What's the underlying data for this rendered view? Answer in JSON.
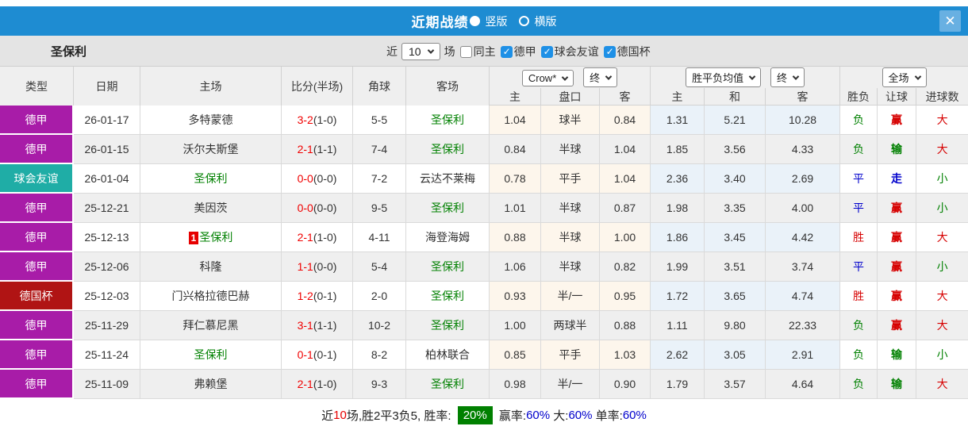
{
  "titlebar": {
    "title": "近期战绩",
    "layout_vertical": "竖版",
    "layout_horizontal": "横版"
  },
  "filter": {
    "team": "圣保利",
    "recent_label": "近",
    "count": "10",
    "matches_label": "场",
    "checkboxes": [
      {
        "label": "同主",
        "checked": false
      },
      {
        "label": "德甲",
        "checked": true
      },
      {
        "label": "球会友谊",
        "checked": true
      },
      {
        "label": "德国杯",
        "checked": true
      }
    ]
  },
  "table": {
    "main_headers": [
      "类型",
      "日期",
      "主场",
      "比分(半场)",
      "角球",
      "客场"
    ],
    "sub_headers": [
      "主",
      "盘口",
      "客",
      "主",
      "和",
      "客",
      "胜负",
      "让球",
      "进球数"
    ],
    "dropdowns": {
      "company": "Crow*",
      "company_period": "终",
      "avg": "胜平负均值",
      "avg_period": "终",
      "scope": "全场"
    }
  },
  "rows": [
    {
      "league": "德甲",
      "league_color": "purple",
      "date": "26-01-17",
      "home": "多特蒙德",
      "home_team": false,
      "badge": "",
      "score": "3-2",
      "half": "(1-0)",
      "corners": "5-5",
      "away": "圣保利",
      "away_team": true,
      "ah_home": "1.04",
      "ah_line": "球半",
      "ah_away": "0.84",
      "eu_home": "1.31",
      "eu_draw": "5.21",
      "eu_away": "10.28",
      "outcome": "负",
      "outcome_color": "green",
      "cover": "赢",
      "cover_color": "red",
      "goals": "大",
      "goals_color": "red"
    },
    {
      "league": "德甲",
      "league_color": "purple",
      "date": "26-01-15",
      "home": "沃尔夫斯堡",
      "home_team": false,
      "badge": "",
      "score": "2-1",
      "half": "(1-1)",
      "corners": "7-4",
      "away": "圣保利",
      "away_team": true,
      "ah_home": "0.84",
      "ah_line": "半球",
      "ah_away": "1.04",
      "eu_home": "1.85",
      "eu_draw": "3.56",
      "eu_away": "4.33",
      "outcome": "负",
      "outcome_color": "green",
      "cover": "输",
      "cover_color": "green",
      "goals": "大",
      "goals_color": "red"
    },
    {
      "league": "球会友谊",
      "league_color": "teal",
      "date": "26-01-04",
      "home": "圣保利",
      "home_team": true,
      "badge": "",
      "score": "0-0",
      "half": "(0-0)",
      "corners": "7-2",
      "away": "云达不莱梅",
      "away_team": false,
      "ah_home": "0.78",
      "ah_line": "平手",
      "ah_away": "1.04",
      "eu_home": "2.36",
      "eu_draw": "3.40",
      "eu_away": "2.69",
      "outcome": "平",
      "outcome_color": "blue",
      "cover": "走",
      "cover_color": "blue",
      "goals": "小",
      "goals_color": "green"
    },
    {
      "league": "德甲",
      "league_color": "purple",
      "date": "25-12-21",
      "home": "美因茨",
      "home_team": false,
      "badge": "",
      "score": "0-0",
      "half": "(0-0)",
      "corners": "9-5",
      "away": "圣保利",
      "away_team": true,
      "ah_home": "1.01",
      "ah_line": "半球",
      "ah_away": "0.87",
      "eu_home": "1.98",
      "eu_draw": "3.35",
      "eu_away": "4.00",
      "outcome": "平",
      "outcome_color": "blue",
      "cover": "赢",
      "cover_color": "red",
      "goals": "小",
      "goals_color": "green"
    },
    {
      "league": "德甲",
      "league_color": "purple",
      "date": "25-12-13",
      "home": "圣保利",
      "home_team": true,
      "badge": "1",
      "score": "2-1",
      "half": "(1-0)",
      "corners": "4-11",
      "away": "海登海姆",
      "away_team": false,
      "ah_home": "0.88",
      "ah_line": "半球",
      "ah_away": "1.00",
      "eu_home": "1.86",
      "eu_draw": "3.45",
      "eu_away": "4.42",
      "outcome": "胜",
      "outcome_color": "red",
      "cover": "赢",
      "cover_color": "red",
      "goals": "大",
      "goals_color": "red"
    },
    {
      "league": "德甲",
      "league_color": "purple",
      "date": "25-12-06",
      "home": "科隆",
      "home_team": false,
      "badge": "",
      "score": "1-1",
      "half": "(0-0)",
      "corners": "5-4",
      "away": "圣保利",
      "away_team": true,
      "ah_home": "1.06",
      "ah_line": "半球",
      "ah_away": "0.82",
      "eu_home": "1.99",
      "eu_draw": "3.51",
      "eu_away": "3.74",
      "outcome": "平",
      "outcome_color": "blue",
      "cover": "赢",
      "cover_color": "red",
      "goals": "小",
      "goals_color": "green"
    },
    {
      "league": "德国杯",
      "league_color": "darkred",
      "date": "25-12-03",
      "home": "门兴格拉德巴赫",
      "home_team": false,
      "badge": "",
      "score": "1-2",
      "half": "(0-1)",
      "corners": "2-0",
      "away": "圣保利",
      "away_team": true,
      "ah_home": "0.93",
      "ah_line": "半/一",
      "ah_away": "0.95",
      "eu_home": "1.72",
      "eu_draw": "3.65",
      "eu_away": "4.74",
      "outcome": "胜",
      "outcome_color": "red",
      "cover": "赢",
      "cover_color": "red",
      "goals": "大",
      "goals_color": "red"
    },
    {
      "league": "德甲",
      "league_color": "purple",
      "date": "25-11-29",
      "home": "拜仁慕尼黑",
      "home_team": false,
      "badge": "",
      "score": "3-1",
      "half": "(1-1)",
      "corners": "10-2",
      "away": "圣保利",
      "away_team": true,
      "ah_home": "1.00",
      "ah_line": "两球半",
      "ah_away": "0.88",
      "eu_home": "1.11",
      "eu_draw": "9.80",
      "eu_away": "22.33",
      "outcome": "负",
      "outcome_color": "green",
      "cover": "赢",
      "cover_color": "red",
      "goals": "大",
      "goals_color": "red"
    },
    {
      "league": "德甲",
      "league_color": "purple",
      "date": "25-11-24",
      "home": "圣保利",
      "home_team": true,
      "badge": "",
      "score": "0-1",
      "half": "(0-1)",
      "corners": "8-2",
      "away": "柏林联合",
      "away_team": false,
      "ah_home": "0.85",
      "ah_line": "平手",
      "ah_away": "1.03",
      "eu_home": "2.62",
      "eu_draw": "3.05",
      "eu_away": "2.91",
      "outcome": "负",
      "outcome_color": "green",
      "cover": "输",
      "cover_color": "green",
      "goals": "小",
      "goals_color": "green"
    },
    {
      "league": "德甲",
      "league_color": "purple",
      "date": "25-11-09",
      "home": "弗赖堡",
      "home_team": false,
      "badge": "",
      "score": "2-1",
      "half": "(1-0)",
      "corners": "9-3",
      "away": "圣保利",
      "away_team": true,
      "ah_home": "0.98",
      "ah_line": "半/一",
      "ah_away": "0.90",
      "eu_home": "1.79",
      "eu_draw": "3.57",
      "eu_away": "4.64",
      "outcome": "负",
      "outcome_color": "green",
      "cover": "输",
      "cover_color": "green",
      "goals": "大",
      "goals_color": "red"
    }
  ],
  "footer": {
    "segments": [
      {
        "text": "近",
        "c": "dark"
      },
      {
        "text": "10",
        "c": "red"
      },
      {
        "text": "场,胜2平3负5, 胜率: ",
        "c": "dark"
      },
      {
        "text": "20%",
        "c": "badge"
      },
      {
        "text": " 赢率:",
        "c": "dark"
      },
      {
        "text": "60%",
        "c": "blue"
      },
      {
        "text": " 大:",
        "c": "dark"
      },
      {
        "text": "60%",
        "c": "blue"
      },
      {
        "text": " 单率:",
        "c": "dark"
      },
      {
        "text": "60%",
        "c": "blue"
      }
    ]
  },
  "colors": {
    "purple": "#a81ca8",
    "teal": "#1fada6",
    "darkred": "#b01414",
    "red": "#d60000",
    "green": "#008000",
    "blue": "#0000cc",
    "score_red": "#f00000",
    "team_green": "#008000",
    "text_dark": "#333333",
    "accent_blue": "#1e8cd2",
    "footer_badge_green": "#008000"
  }
}
